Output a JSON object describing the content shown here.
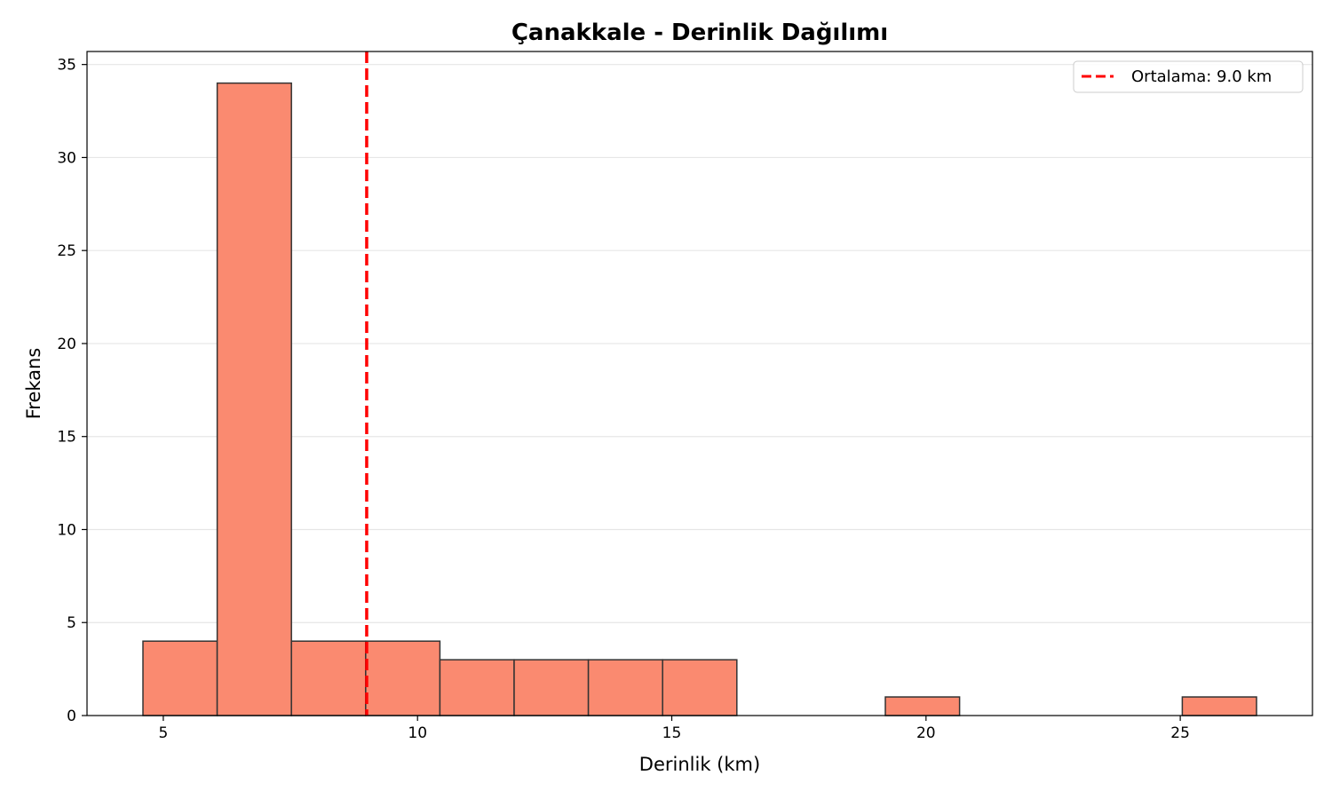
{
  "chart_data": {
    "type": "bar",
    "title": "Çanakkale - Derinlik Dağılımı",
    "xlabel": "Derinlik (km)",
    "ylabel": "Frekans",
    "bins": [
      {
        "x0": 4.6,
        "x1": 6.06,
        "count": 4
      },
      {
        "x0": 6.06,
        "x1": 7.52,
        "count": 34
      },
      {
        "x0": 7.52,
        "x1": 8.98,
        "count": 4
      },
      {
        "x0": 8.98,
        "x1": 10.44,
        "count": 4
      },
      {
        "x0": 10.44,
        "x1": 11.9,
        "count": 3
      },
      {
        "x0": 11.9,
        "x1": 13.36,
        "count": 3
      },
      {
        "x0": 13.36,
        "x1": 14.82,
        "count": 3
      },
      {
        "x0": 14.82,
        "x1": 16.28,
        "count": 3
      },
      {
        "x0": 16.28,
        "x1": 17.74,
        "count": 0
      },
      {
        "x0": 17.74,
        "x1": 19.2,
        "count": 0
      },
      {
        "x0": 19.2,
        "x1": 20.66,
        "count": 1
      },
      {
        "x0": 20.66,
        "x1": 22.12,
        "count": 0
      },
      {
        "x0": 22.12,
        "x1": 23.58,
        "count": 0
      },
      {
        "x0": 23.58,
        "x1": 25.04,
        "count": 0
      },
      {
        "x0": 25.04,
        "x1": 26.5,
        "count": 1
      }
    ],
    "xlim": [
      3.5,
      27.6
    ],
    "ylim": [
      0,
      35.7
    ],
    "xticks": [
      5,
      10,
      15,
      20,
      25
    ],
    "yticks": [
      0,
      5,
      10,
      15,
      20,
      25,
      30,
      35
    ],
    "mean_line": {
      "value": 9.0,
      "label": "Ortalama: 9.0 km",
      "color": "#ff0000"
    },
    "bar_color": "#fa8a70",
    "bar_edge_color": "#333333",
    "grid": "y",
    "legend_position": "top-right"
  }
}
